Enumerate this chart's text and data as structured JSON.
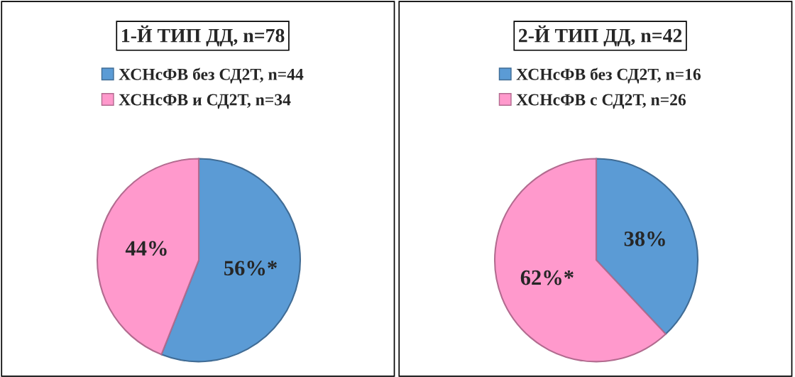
{
  "chart_data": [
    {
      "type": "pie",
      "title": "1-Й ТИП ДД, n=78",
      "categories": [
        "ХСНсФВ без СД2Т, n=44",
        "ХСНсФВ и СД2Т, n=34"
      ],
      "values": [
        56,
        44
      ],
      "value_labels": [
        "56%*",
        "44%"
      ],
      "colors": [
        "#5b9bd5",
        "#ff99cc"
      ],
      "legend": "top"
    },
    {
      "type": "pie",
      "title": "2-Й ТИП ДД, n=42",
      "categories": [
        "ХСНсФВ без СД2Т, n=16",
        "ХСНсФВ с СД2Т, n=26"
      ],
      "values": [
        38,
        62
      ],
      "value_labels": [
        "38%",
        "62%*"
      ],
      "colors": [
        "#5b9bd5",
        "#ff99cc"
      ],
      "legend": "top"
    }
  ]
}
